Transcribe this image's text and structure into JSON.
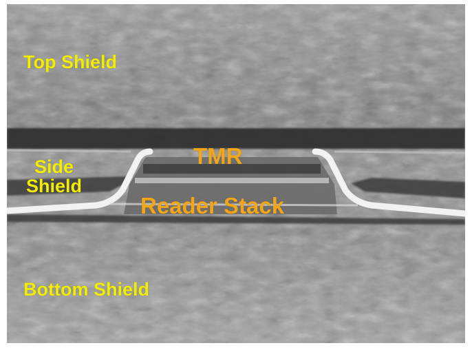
{
  "labels": {
    "top_shield": "Top Shield",
    "side_shield_line1": "Side",
    "side_shield_line2": "Shield",
    "tmr": "TMR",
    "reader_stack": "Reader Stack",
    "bottom_shield": "Bottom Shield"
  },
  "colors": {
    "yellow_label": "#f2ee00",
    "orange_label": "#f2a71a",
    "shield_gray": "#8a8a8a",
    "dark_layer": "#2f2f2f",
    "bright_line": "#f2f2f2"
  }
}
